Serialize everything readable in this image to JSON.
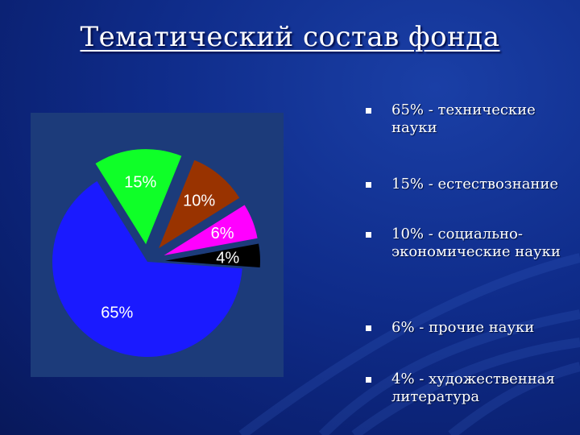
{
  "title": "Тематический состав фонда",
  "legend": [
    {
      "text": "65% - технические науки"
    },
    {
      "text": "15% - естествознание"
    },
    {
      "text": "10% - социально-экономические науки"
    },
    {
      "text": "6% - прочие науки"
    },
    {
      "text": "4% - художественная литература"
    }
  ],
  "colors": {
    "panel": "#1c3b7a",
    "bullet": "#ffffff"
  },
  "chart_data": {
    "type": "pie",
    "title": "",
    "slices": [
      {
        "label": "65%",
        "value": 65,
        "color": "#1a1aff"
      },
      {
        "label": "15%",
        "value": 15,
        "color": "#0fff28"
      },
      {
        "label": "10%",
        "value": 10,
        "color": "#993300"
      },
      {
        "label": "6%",
        "value": 6,
        "color": "#ff00ff"
      },
      {
        "label": "4%",
        "value": 4,
        "color": "#000000"
      }
    ],
    "exploded": true,
    "legend": "right"
  }
}
